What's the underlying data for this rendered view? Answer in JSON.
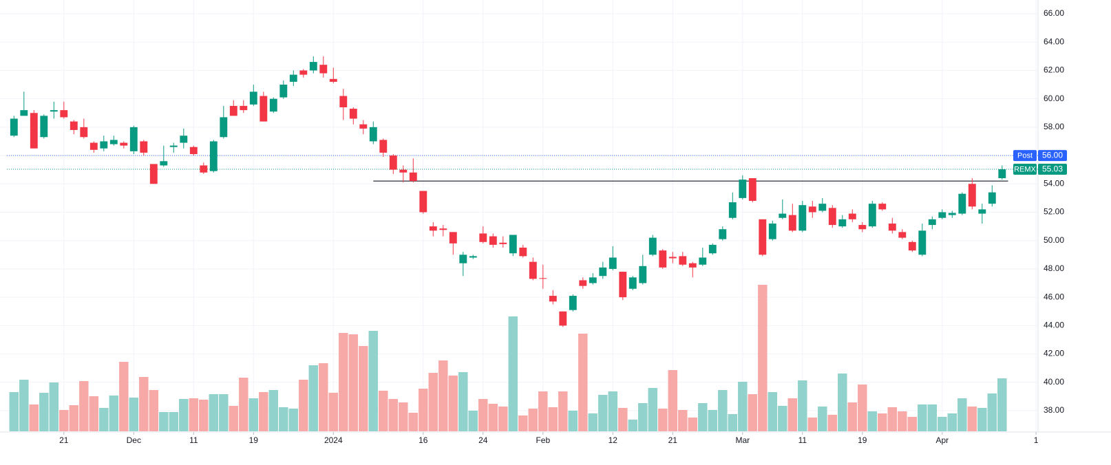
{
  "chart_data": {
    "type": "candlestick",
    "open": [
      57.4,
      58.8,
      59.0,
      57.3,
      59.1,
      59.2,
      58.4,
      58.0,
      56.9,
      56.5,
      56.8,
      56.9,
      56.3,
      57.0,
      55.4,
      55.3,
      56.6,
      56.9,
      56.6,
      55.3,
      54.9,
      57.3,
      59.5,
      59.5,
      59.6,
      60.2,
      59.1,
      60.1,
      61.2,
      62.0,
      62.0,
      62.4,
      61.4,
      60.2,
      59.3,
      58.2,
      57.0,
      57.1,
      56.0,
      55.0,
      54.8,
      53.5,
      51.0,
      50.85,
      50.6,
      48.4,
      48.8,
      50.5,
      50.3,
      49.85,
      49.1,
      49.5,
      48.5,
      47.35,
      46.1,
      45.0,
      45.1,
      47.2,
      47.0,
      47.5,
      48.0,
      47.8,
      46.6,
      47.0,
      49.0,
      49.3,
      48.85,
      48.9,
      48.4,
      48.3,
      49.1,
      50.1,
      51.6,
      53.0,
      54.4,
      51.5,
      50.1,
      51.6,
      51.8,
      50.7,
      52.4,
      52.1,
      52.3,
      51.0,
      51.9,
      51.1,
      51.0,
      52.6,
      51.2,
      50.6,
      49.9,
      49.0,
      51.1,
      51.6,
      51.8,
      51.9,
      54.0,
      51.9,
      52.6,
      54.4
    ],
    "high": [
      58.8,
      60.5,
      59.2,
      58.9,
      59.8,
      59.8,
      58.5,
      58.6,
      57.0,
      57.4,
      57.4,
      57.0,
      58.1,
      57.1,
      55.4,
      56.7,
      56.9,
      57.9,
      56.7,
      55.5,
      57.1,
      59.5,
      59.9,
      59.9,
      61.0,
      60.5,
      60.1,
      61.3,
      62.0,
      62.1,
      63.0,
      63.0,
      62.2,
      60.7,
      59.4,
      58.5,
      58.4,
      57.2,
      56.1,
      55.3,
      55.8,
      53.5,
      51.3,
      51.1,
      50.6,
      49.2,
      49.0,
      51.0,
      50.5,
      50.3,
      50.4,
      49.7,
      48.8,
      48.3,
      46.5,
      45.0,
      46.2,
      47.4,
      47.7,
      48.5,
      49.6,
      47.8,
      47.5,
      49.0,
      50.4,
      49.4,
      49.2,
      49.2,
      48.5,
      49.5,
      49.8,
      51.0,
      53.4,
      54.6,
      54.4,
      51.5,
      51.4,
      52.9,
      52.6,
      52.8,
      52.8,
      53.0,
      52.5,
      51.8,
      52.2,
      51.3,
      52.8,
      52.7,
      51.6,
      50.8,
      50.0,
      51.2,
      51.7,
      52.2,
      52.1,
      53.4,
      54.4,
      52.6,
      53.9,
      55.3
    ],
    "low": [
      57.3,
      58.8,
      56.5,
      57.2,
      58.6,
      58.6,
      57.5,
      57.2,
      56.2,
      56.3,
      56.7,
      56.5,
      56.1,
      56.0,
      54.0,
      55.2,
      56.2,
      56.5,
      56.0,
      54.7,
      54.8,
      57.2,
      58.8,
      59.0,
      59.5,
      58.4,
      59.0,
      60.0,
      60.9,
      61.5,
      61.8,
      61.5,
      61.1,
      58.5,
      58.2,
      57.5,
      56.8,
      55.9,
      54.7,
      54.1,
      54.1,
      51.9,
      50.3,
      50.3,
      49.0,
      47.5,
      48.7,
      49.8,
      49.5,
      49.5,
      48.9,
      48.8,
      47.2,
      46.6,
      45.5,
      43.9,
      45.0,
      46.6,
      46.9,
      47.3,
      47.9,
      45.8,
      46.5,
      46.9,
      48.9,
      48.0,
      48.4,
      48.2,
      47.4,
      48.2,
      49.0,
      50.0,
      51.5,
      52.9,
      52.7,
      48.9,
      50.0,
      51.5,
      50.6,
      50.6,
      51.6,
      52.0,
      50.9,
      50.9,
      51.3,
      50.6,
      50.9,
      52.1,
      50.5,
      50.1,
      49.2,
      48.9,
      50.8,
      51.5,
      51.6,
      51.8,
      52.2,
      51.2,
      52.4,
      54.3
    ],
    "close": [
      58.6,
      59.2,
      56.5,
      58.8,
      59.2,
      58.7,
      57.8,
      57.3,
      56.4,
      57.0,
      57.1,
      56.7,
      58.0,
      56.2,
      54.0,
      55.6,
      56.7,
      57.4,
      56.1,
      54.8,
      57.0,
      58.7,
      58.8,
      59.2,
      60.5,
      58.4,
      60.0,
      61.0,
      61.7,
      61.7,
      62.6,
      61.8,
      61.2,
      59.4,
      58.6,
      57.9,
      58.0,
      56.2,
      55.0,
      54.8,
      54.2,
      52.0,
      50.7,
      50.75,
      49.8,
      49.0,
      48.9,
      49.9,
      49.7,
      49.75,
      50.4,
      48.9,
      47.3,
      47.3,
      45.7,
      44.0,
      46.1,
      46.8,
      47.4,
      48.1,
      48.8,
      46.0,
      47.4,
      48.2,
      50.2,
      48.1,
      48.75,
      48.3,
      48.1,
      48.8,
      49.7,
      50.8,
      52.7,
      54.3,
      52.8,
      49.0,
      51.2,
      51.9,
      50.7,
      52.5,
      52.0,
      52.6,
      51.1,
      51.5,
      51.5,
      50.8,
      52.6,
      52.2,
      50.7,
      50.2,
      49.3,
      50.7,
      51.5,
      52.0,
      51.95,
      53.3,
      52.4,
      52.2,
      53.4,
      55.03
    ],
    "volume": [
      57,
      75,
      39,
      56,
      71,
      31,
      38,
      73,
      51,
      34,
      52,
      101,
      49,
      79,
      60,
      28,
      28,
      47,
      48,
      46,
      54,
      54,
      37,
      78,
      48,
      57,
      60,
      35,
      33,
      75,
      96,
      99,
      56,
      143,
      141,
      124,
      146,
      59,
      47,
      42,
      27,
      62,
      85,
      103,
      81,
      86,
      30,
      47,
      40,
      36,
      167,
      23,
      33,
      58,
      35,
      58,
      30,
      142,
      26,
      53,
      58,
      34,
      17,
      41,
      63,
      33,
      89,
      31,
      20,
      41,
      31,
      60,
      25,
      72,
      54,
      213,
      57,
      37,
      48,
      74,
      20,
      36,
      24,
      84,
      42,
      68,
      29,
      26,
      35,
      29,
      21,
      39,
      39,
      21,
      26,
      48,
      36,
      34,
      55,
      77
    ],
    "volume_lim": [
      0,
      280
    ],
    "xlim": [
      -1.4,
      102.6
    ],
    "xticks": [
      {
        "value": 5,
        "label": "21"
      },
      {
        "value": 12,
        "label": "Dec"
      },
      {
        "value": 18,
        "label": "11"
      },
      {
        "value": 24,
        "label": "19"
      },
      {
        "value": 32,
        "label": "2024"
      },
      {
        "value": 41,
        "label": "16"
      },
      {
        "value": 47,
        "label": "24"
      },
      {
        "value": 53,
        "label": "Feb"
      },
      {
        "value": 60,
        "label": "12"
      },
      {
        "value": 66,
        "label": "21"
      },
      {
        "value": 73,
        "label": "Mar"
      },
      {
        "value": 79,
        "label": "11"
      },
      {
        "value": 85,
        "label": "19"
      },
      {
        "value": 93,
        "label": "Apr"
      },
      {
        "value": 102.4,
        "label": "1"
      }
    ],
    "ylim": [
      38,
      66
    ],
    "yticks": [
      {
        "value": 38,
        "label": "38.00"
      },
      {
        "value": 40,
        "label": "40.00"
      },
      {
        "value": 42,
        "label": "42.00"
      },
      {
        "value": 44,
        "label": "44.00"
      },
      {
        "value": 46,
        "label": "46.00"
      },
      {
        "value": 48,
        "label": "48.00"
      },
      {
        "value": 50,
        "label": "50.00"
      },
      {
        "value": 52,
        "label": "52.00"
      },
      {
        "value": 54,
        "label": "54.00"
      },
      {
        "value": 56,
        "label": "56.00"
      },
      {
        "value": 58,
        "label": "58.00"
      },
      {
        "value": 60,
        "label": "60.00"
      },
      {
        "value": 62,
        "label": "62.00"
      },
      {
        "value": 64,
        "label": "64.00"
      },
      {
        "value": 66,
        "label": "66.00"
      }
    ],
    "grid": true,
    "up_color": "#089981",
    "down_color": "#f23645",
    "volume_up_color": "#92d2cc",
    "volume_down_color": "#f7a9a7",
    "hlines": [
      {
        "value": 54.2,
        "from": 36,
        "to": 99.6,
        "color": "#131722"
      }
    ],
    "price_lines": [
      {
        "name": "Post",
        "value": {
          "value": 56,
          "label": "56.00"
        },
        "color": "#2962ff"
      },
      {
        "name": "REMX",
        "value": {
          "value": 55.03,
          "label": "55.03"
        },
        "color": "#089981"
      }
    ]
  }
}
